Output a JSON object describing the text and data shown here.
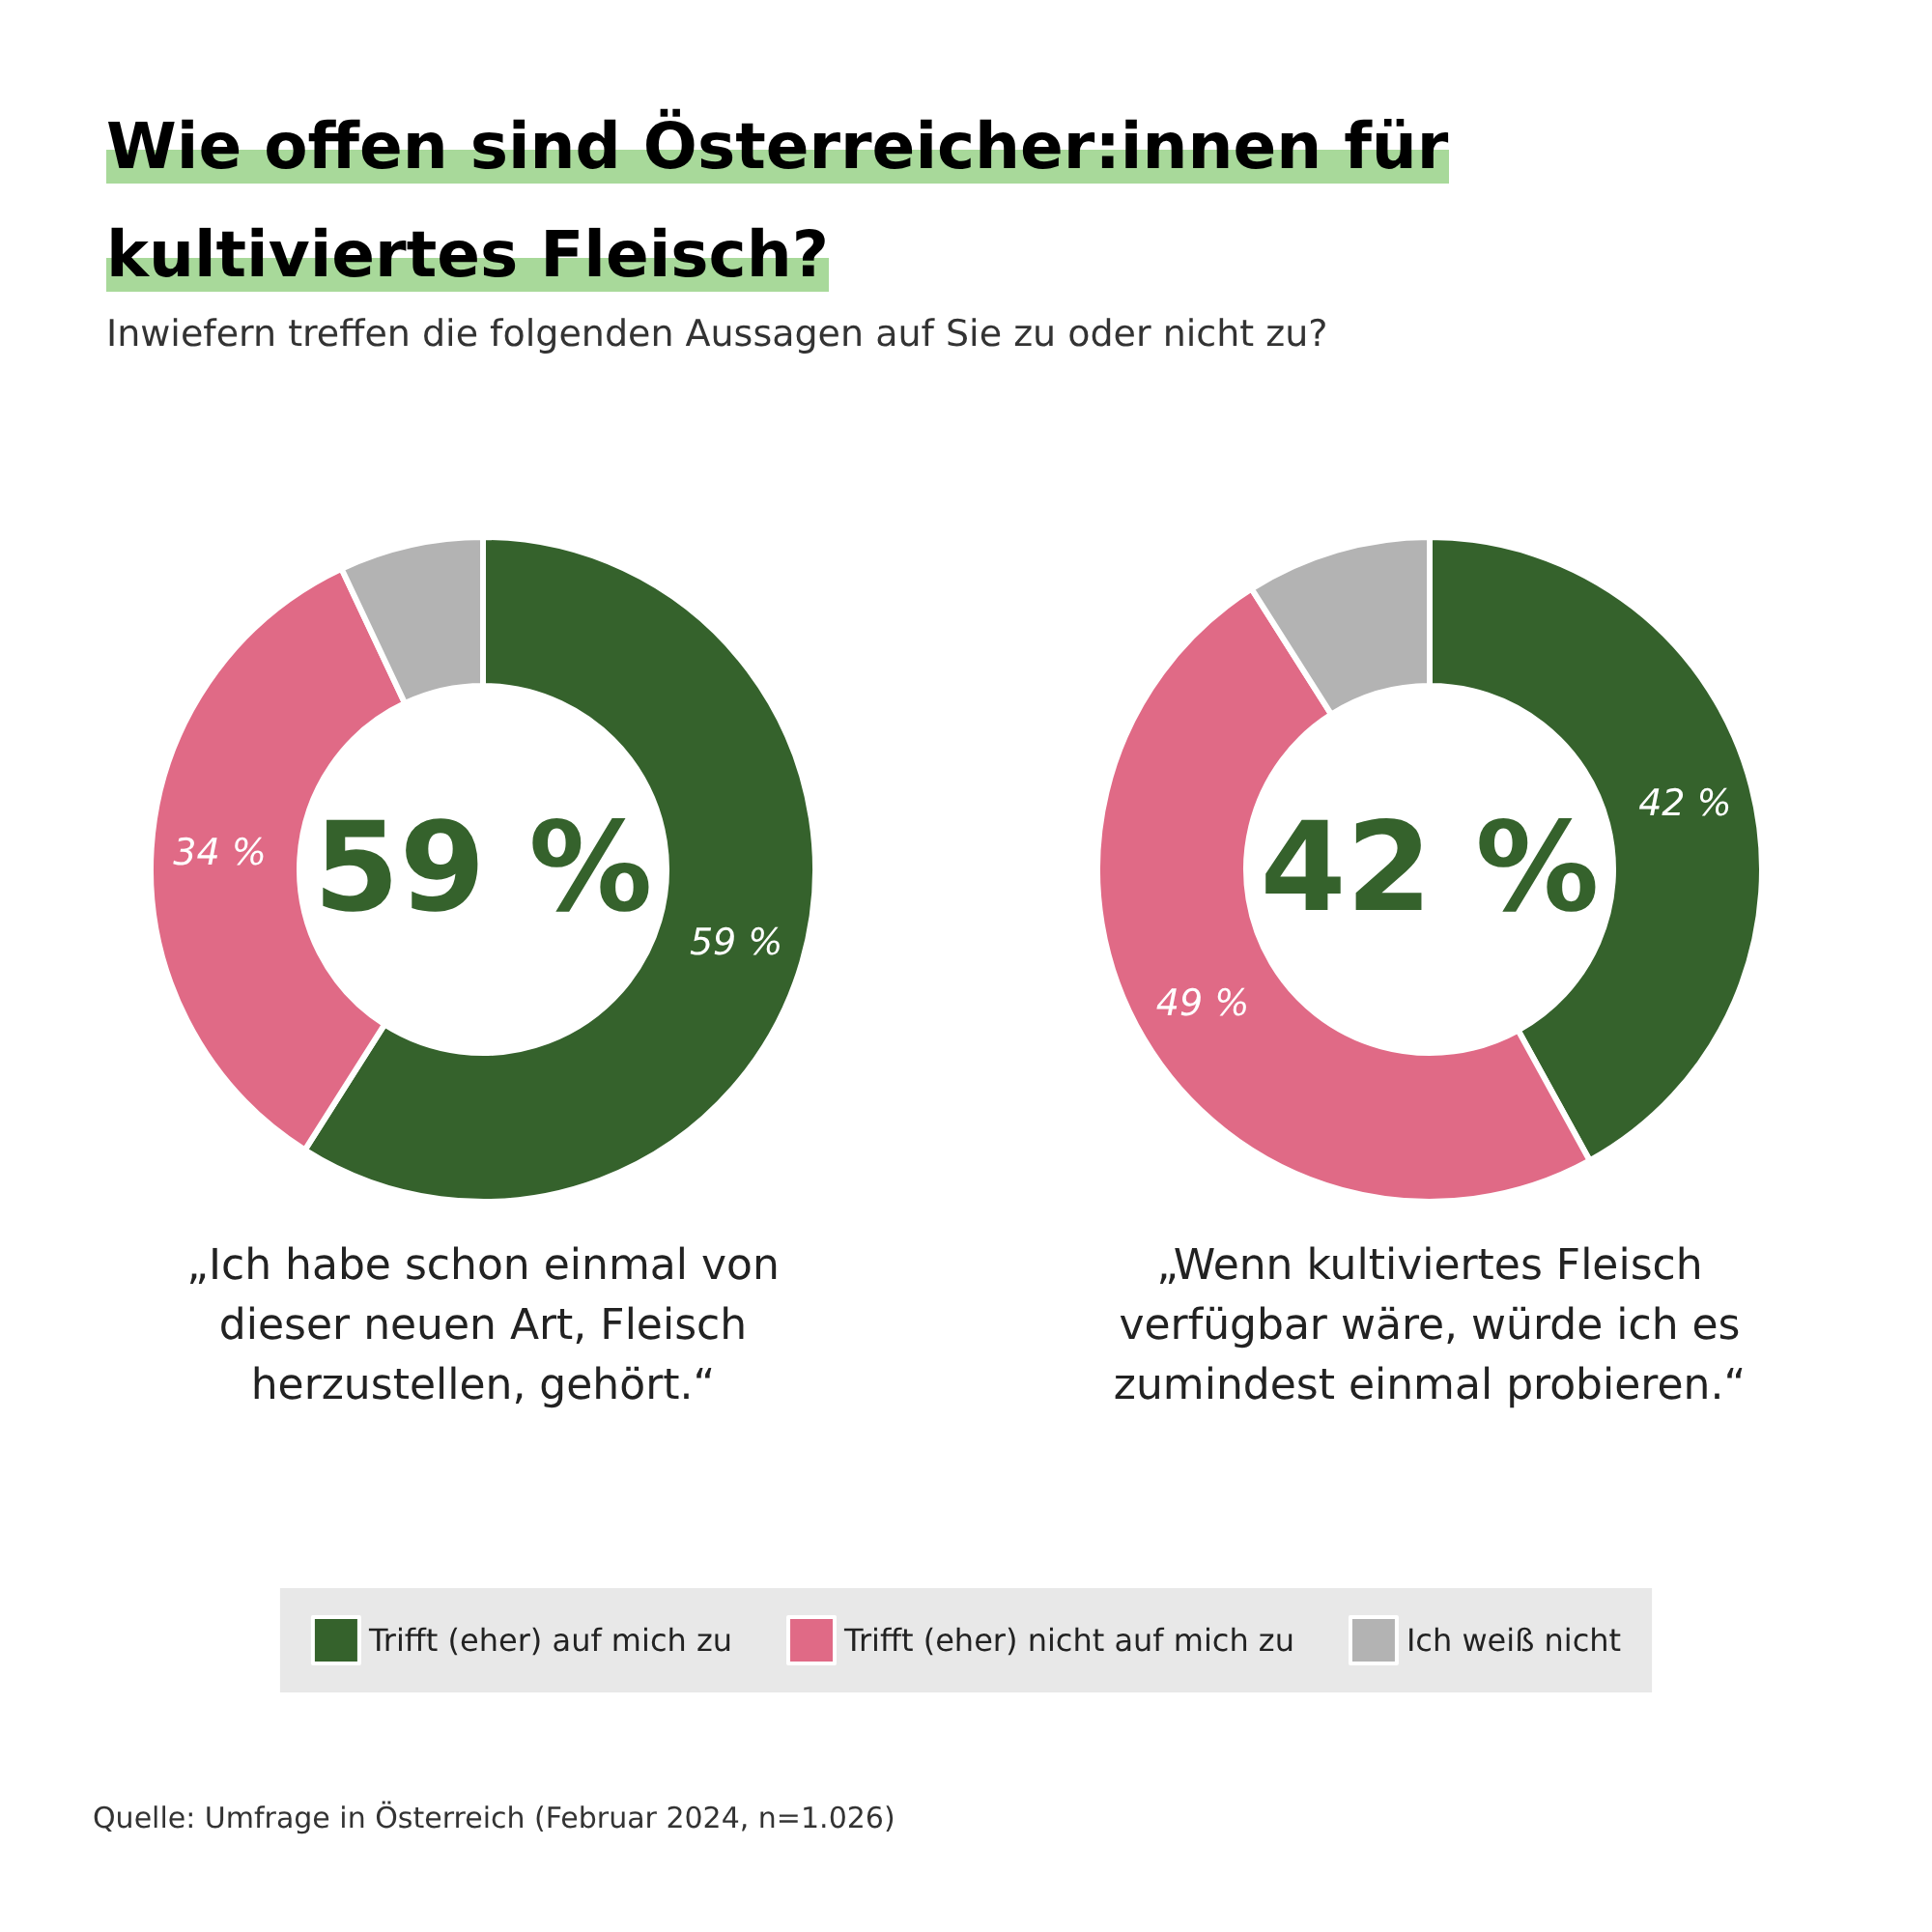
{
  "chart_data": {
    "type": "donut",
    "title": "Wie offen sind Österreicher:innen für kultiviertes Fleisch?",
    "subtitle": "Inwiefern treffen die folgenden Aussagen auf Sie zu oder nicht zu?",
    "categories": [
      "Trifft (eher) auf mich zu",
      "Trifft (eher) nicht auf mich zu",
      "Ich weiß nicht"
    ],
    "colors": [
      "#35622c",
      "#e06a86",
      "#b3b3b3"
    ],
    "series": [
      {
        "name": "„Ich habe schon einmal von dieser neuen Art, Fleisch herzustellen, gehört.“",
        "values": [
          59,
          34,
          7
        ],
        "value_labels": [
          "59 %",
          "34 %",
          null
        ]
      },
      {
        "name": "„Wenn kultiviertes Fleisch verfügbar wäre, würde ich es zumindest einmal probieren.“",
        "values": [
          42,
          49,
          9
        ],
        "value_labels": [
          "42 %",
          "49 %",
          null
        ]
      }
    ],
    "annotations": [
      "59 %",
      "42 %",
      "Quelle: Umfrage in Österreich (Februar 2024, n=1.026)"
    ],
    "legend": "bottom"
  }
}
